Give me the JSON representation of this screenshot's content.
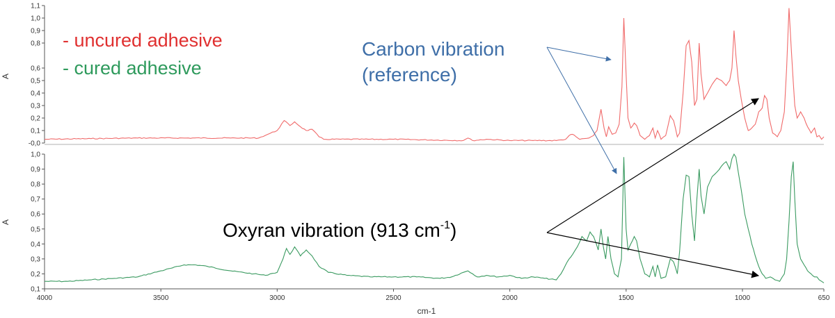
{
  "chart_data": [
    {
      "type": "line",
      "panel": "top",
      "xlabel": "",
      "ylabel": "A",
      "xlim": [
        4000,
        650
      ],
      "ylim": [
        0.0,
        1.1
      ],
      "yticks": [
        "-0,0",
        "0,1",
        "0,2",
        "0,3",
        "0,4",
        "0,5",
        "0,6",
        "0,8",
        "0,9",
        "1,0",
        "1,1"
      ],
      "yticks_values": [
        0.0,
        0.1,
        0.2,
        0.3,
        0.4,
        0.5,
        0.6,
        0.8,
        0.9,
        1.0,
        1.1
      ],
      "color": "#f06a6a",
      "series": [
        {
          "x": [
            4000,
            3800,
            3600,
            3400,
            3200,
            3080,
            3040,
            3000,
            2970,
            2945,
            2925,
            2900,
            2875,
            2850,
            2820,
            2800,
            2500,
            2200,
            2180,
            2160,
            2100,
            2000,
            1900,
            1800,
            1760,
            1745,
            1730,
            1715,
            1700,
            1660,
            1640,
            1625,
            1608,
            1595,
            1585,
            1575,
            1560,
            1545,
            1530,
            1518,
            1510,
            1500,
            1492,
            1480,
            1465,
            1455,
            1440,
            1420,
            1400,
            1385,
            1375,
            1365,
            1350,
            1330,
            1310,
            1296,
            1280,
            1270,
            1255,
            1242,
            1230,
            1218,
            1206,
            1196,
            1186,
            1178,
            1165,
            1150,
            1130,
            1110,
            1090,
            1070,
            1055,
            1045,
            1036,
            1028,
            1018,
            1005,
            990,
            975,
            960,
            945,
            930,
            915,
            905,
            895,
            885,
            870,
            850,
            835,
            820,
            810,
            800,
            790,
            782,
            775,
            765,
            750,
            735,
            720,
            705,
            690,
            680,
            670,
            660,
            650
          ],
          "y": [
            0.03,
            0.035,
            0.04,
            0.04,
            0.04,
            0.04,
            0.07,
            0.1,
            0.18,
            0.14,
            0.17,
            0.13,
            0.1,
            0.11,
            0.05,
            0.03,
            0.03,
            0.02,
            0.04,
            0.02,
            0.03,
            0.02,
            0.02,
            0.02,
            0.03,
            0.06,
            0.07,
            0.05,
            0.03,
            0.04,
            0.06,
            0.1,
            0.27,
            0.12,
            0.05,
            0.13,
            0.07,
            0.08,
            0.15,
            0.45,
            1.0,
            0.55,
            0.2,
            0.12,
            0.16,
            0.14,
            0.06,
            0.03,
            0.06,
            0.12,
            0.04,
            0.1,
            0.03,
            0.06,
            0.22,
            0.18,
            0.05,
            0.08,
            0.4,
            0.78,
            0.82,
            0.65,
            0.3,
            0.35,
            0.8,
            0.55,
            0.35,
            0.4,
            0.47,
            0.52,
            0.5,
            0.46,
            0.5,
            0.6,
            0.9,
            0.7,
            0.5,
            0.35,
            0.2,
            0.1,
            0.12,
            0.15,
            0.25,
            0.28,
            0.38,
            0.35,
            0.2,
            0.08,
            0.05,
            0.1,
            0.25,
            0.6,
            1.08,
            0.75,
            0.5,
            0.3,
            0.2,
            0.25,
            0.2,
            0.13,
            0.08,
            0.12,
            0.05,
            0.06,
            0.03,
            0.05
          ]
        }
      ]
    },
    {
      "type": "line",
      "panel": "bottom",
      "xlabel": "cm-1",
      "ylabel": "A",
      "xlim": [
        4000,
        650
      ],
      "ylim": [
        0.1,
        1.0
      ],
      "xticks": [
        "4000",
        "3500",
        "3000",
        "2500",
        "2000",
        "1500",
        "1000",
        "650"
      ],
      "xticks_values": [
        4000,
        3500,
        3000,
        2500,
        2000,
        1500,
        1000,
        650
      ],
      "yticks": [
        "0,1",
        "0,2",
        "0,3",
        "0,4",
        "0,5",
        "0,6",
        "0,7",
        "0,8",
        "0,9",
        "1,0"
      ],
      "yticks_values": [
        0.1,
        0.2,
        0.3,
        0.4,
        0.5,
        0.6,
        0.7,
        0.8,
        0.9,
        1.0
      ],
      "color": "#3a9a60",
      "series": [
        {
          "x": [
            4000,
            3900,
            3800,
            3700,
            3600,
            3500,
            3450,
            3400,
            3350,
            3300,
            3200,
            3100,
            3050,
            3030,
            3000,
            2975,
            2960,
            2945,
            2925,
            2900,
            2875,
            2850,
            2820,
            2780,
            2700,
            2600,
            2500,
            2400,
            2300,
            2250,
            2200,
            2180,
            2160,
            2140,
            2100,
            2050,
            2000,
            1950,
            1900,
            1850,
            1800,
            1780,
            1760,
            1745,
            1730,
            1710,
            1690,
            1670,
            1655,
            1640,
            1628,
            1620,
            1608,
            1598,
            1588,
            1578,
            1565,
            1550,
            1535,
            1520,
            1510,
            1500,
            1492,
            1480,
            1465,
            1455,
            1440,
            1420,
            1400,
            1385,
            1375,
            1365,
            1350,
            1330,
            1310,
            1296,
            1280,
            1270,
            1255,
            1242,
            1230,
            1218,
            1206,
            1196,
            1186,
            1178,
            1165,
            1150,
            1130,
            1110,
            1090,
            1070,
            1055,
            1045,
            1036,
            1028,
            1018,
            1005,
            990,
            975,
            960,
            945,
            930,
            915,
            900,
            880,
            860,
            840,
            820,
            810,
            800,
            790,
            782,
            775,
            765,
            750,
            735,
            720,
            705,
            690,
            680,
            670,
            660,
            650
          ],
          "y": [
            0.15,
            0.15,
            0.16,
            0.17,
            0.18,
            0.22,
            0.24,
            0.26,
            0.26,
            0.25,
            0.22,
            0.2,
            0.19,
            0.2,
            0.21,
            0.3,
            0.37,
            0.33,
            0.38,
            0.32,
            0.36,
            0.32,
            0.25,
            0.21,
            0.19,
            0.18,
            0.18,
            0.18,
            0.17,
            0.18,
            0.21,
            0.22,
            0.2,
            0.18,
            0.19,
            0.18,
            0.19,
            0.17,
            0.18,
            0.17,
            0.16,
            0.2,
            0.26,
            0.3,
            0.33,
            0.38,
            0.45,
            0.42,
            0.48,
            0.45,
            0.4,
            0.36,
            0.5,
            0.38,
            0.3,
            0.45,
            0.3,
            0.2,
            0.18,
            0.3,
            0.98,
            0.5,
            0.36,
            0.4,
            0.45,
            0.42,
            0.3,
            0.2,
            0.18,
            0.25,
            0.18,
            0.26,
            0.17,
            0.18,
            0.3,
            0.28,
            0.2,
            0.35,
            0.7,
            0.86,
            0.85,
            0.6,
            0.42,
            0.7,
            0.9,
            0.72,
            0.6,
            0.78,
            0.85,
            0.88,
            0.92,
            0.95,
            0.9,
            0.97,
            1.0,
            0.98,
            0.88,
            0.76,
            0.6,
            0.5,
            0.4,
            0.32,
            0.25,
            0.2,
            0.17,
            0.18,
            0.16,
            0.15,
            0.2,
            0.3,
            0.55,
            0.85,
            0.95,
            0.7,
            0.4,
            0.3,
            0.26,
            0.22,
            0.2,
            0.18,
            0.18,
            0.16,
            0.15,
            0.14
          ]
        }
      ]
    }
  ],
  "legend": {
    "uncured": "- uncured adhesive",
    "cured": "- cured adhesive",
    "uncured_color": "#e03030",
    "cured_color": "#2e9a5c"
  },
  "annotations": {
    "carbon_line1": "Carbon vibration",
    "carbon_line2": "(reference)",
    "carbon_color": "#3f6fa8",
    "oxyran_main": "Oxyran vibration (913 cm",
    "oxyran_sup": "-1",
    "oxyran_end": ")",
    "oxyran_color": "#000000"
  }
}
